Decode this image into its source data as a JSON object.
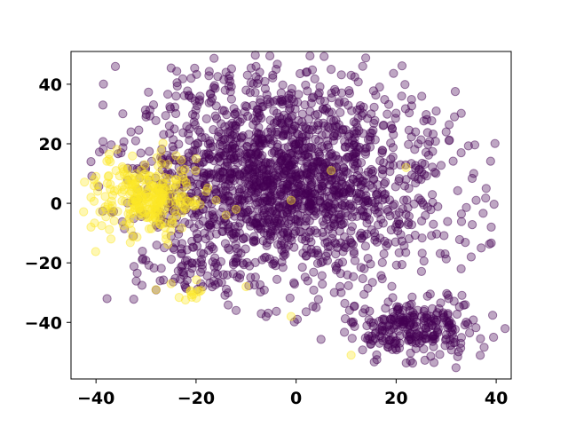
{
  "chart_data": {
    "type": "scatter",
    "title": "",
    "xlabel": "",
    "ylabel": "",
    "xlim": [
      -45,
      43
    ],
    "ylim": [
      -59,
      51
    ],
    "xticks": [
      -40,
      -20,
      0,
      20,
      40
    ],
    "yticks": [
      -40,
      -20,
      0,
      20,
      40
    ],
    "xtick_labels": [
      "−40",
      "−20",
      "0",
      "20",
      "40"
    ],
    "ytick_labels": [
      "−40",
      "−20",
      "0",
      "20",
      "40"
    ],
    "grid": false,
    "legend": "none",
    "marker_alpha": 0.35,
    "colors": {
      "class0": "#440154",
      "class1": "#fde725"
    },
    "series": [
      {
        "color_key": "class0",
        "clusters": [
          {
            "cx": -2,
            "cy": 8,
            "sx": 15,
            "sy": 17,
            "n": 1800
          },
          {
            "cx": 24,
            "cy": -42,
            "sx": 7,
            "sy": 5,
            "n": 260
          },
          {
            "cx": -22,
            "cy": -22,
            "sx": 6,
            "sy": 4,
            "n": 60
          }
        ],
        "points": [
          [
            -8,
            46
          ],
          [
            -4,
            45
          ],
          [
            2,
            44
          ],
          [
            7,
            45
          ],
          [
            11,
            43
          ],
          [
            -14,
            44
          ],
          [
            28,
            31
          ],
          [
            38,
            5
          ],
          [
            39,
            -8
          ],
          [
            37,
            -15
          ],
          [
            -41,
            14
          ],
          [
            -35,
            17
          ],
          [
            -33,
            24
          ],
          [
            -30,
            29
          ],
          [
            -24,
            36
          ],
          [
            -21,
            42
          ],
          [
            -12,
            -36
          ],
          [
            -6,
            -38
          ],
          [
            4,
            -35
          ],
          [
            9,
            -30
          ],
          [
            33,
            -22
          ],
          [
            35,
            -18
          ],
          [
            30,
            24
          ],
          [
            33,
            17
          ],
          [
            -13,
            15
          ],
          [
            2,
            25
          ],
          [
            15,
            30
          ],
          [
            22,
            8
          ],
          [
            -10,
            38
          ],
          [
            36,
            1
          ]
        ]
      },
      {
        "color_key": "class1",
        "clusters": [
          {
            "cx": -30,
            "cy": 2,
            "sx": 5,
            "sy": 6,
            "n": 260
          },
          {
            "cx": -20,
            "cy": -30,
            "sx": 2,
            "sy": 1.5,
            "n": 12
          }
        ],
        "points": [
          [
            -41,
            2
          ],
          [
            -41,
            -8
          ],
          [
            -40,
            9
          ],
          [
            -38,
            -2
          ],
          [
            -36,
            11
          ],
          [
            -24,
            16
          ],
          [
            -20,
            15
          ],
          [
            -14,
            -4
          ],
          [
            -12,
            -2
          ],
          [
            -16,
            1
          ],
          [
            -18,
            4
          ],
          [
            -22,
            7
          ],
          [
            7,
            11
          ],
          [
            22,
            12
          ],
          [
            -1,
            1
          ],
          [
            11,
            -51
          ],
          [
            -1,
            -38
          ],
          [
            -28,
            -29
          ],
          [
            -25,
            -27
          ],
          [
            -10,
            -28
          ],
          [
            -26,
            -12
          ],
          [
            -33,
            -9
          ],
          [
            -37,
            -12
          ]
        ]
      }
    ]
  }
}
